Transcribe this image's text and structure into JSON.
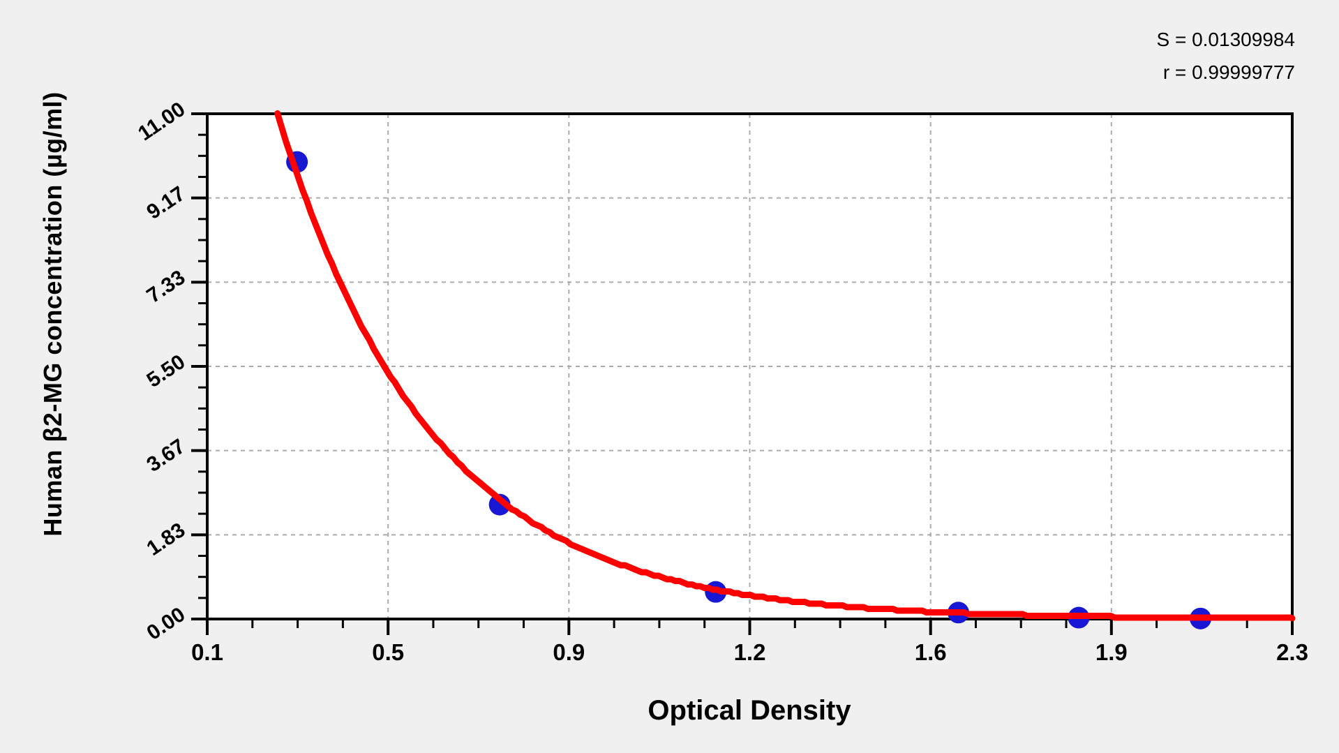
{
  "chart_data": {
    "type": "scatter",
    "title": "",
    "xlabel": "Optical Density",
    "ylabel": "Human β2-MG concentration (µg/ml)",
    "xlim": [
      0.1,
      2.3
    ],
    "ylim": [
      0.0,
      11.0
    ],
    "x_tick_labels": [
      "0.1",
      "0.5",
      "0.9",
      "1.2",
      "1.6",
      "1.9",
      "2.3"
    ],
    "x_tick_values": [
      0.1,
      0.4667,
      0.8333,
      1.2,
      1.5667,
      1.9333,
      2.3
    ],
    "y_tick_labels": [
      "0.00",
      "1.83",
      "3.67",
      "5.50",
      "7.33",
      "9.17",
      "11.00"
    ],
    "y_tick_values": [
      0.0,
      1.8333,
      3.6667,
      5.5,
      7.3333,
      9.1667,
      11.0
    ],
    "minor_ticks_between_majors": 3,
    "grid": "dashed gray lines at interior major ticks, both axes",
    "legend": "none",
    "points": [
      {
        "od": 0.282,
        "conc": 9.95
      },
      {
        "od": 0.693,
        "conc": 2.49
      },
      {
        "od": 1.131,
        "conc": 0.59
      },
      {
        "od": 1.623,
        "conc": 0.14
      },
      {
        "od": 1.867,
        "conc": 0.03
      },
      {
        "od": 2.114,
        "conc": 0.01
      }
    ],
    "curve": {
      "model": "exponential-decay fit",
      "formula": "conc = 11 * exp(-3.2 * (OD - 0.2425))",
      "amplitude": 11,
      "decay": 3.2,
      "od_start": 0.2425,
      "od_end": 2.3
    },
    "annotations": [
      "S = 0.01309984",
      "r = 0.99999777"
    ],
    "stats": {
      "S": "0.01309984",
      "r": "0.99999777"
    },
    "colors": {
      "curve": "#ff0000",
      "points": "#1717d4",
      "grid": "#ababab",
      "frame": "#000000",
      "ticks": "#000000",
      "plot_bg": "#ffffff",
      "page_bg": "#f0f0f0",
      "text": "#000000"
    }
  }
}
